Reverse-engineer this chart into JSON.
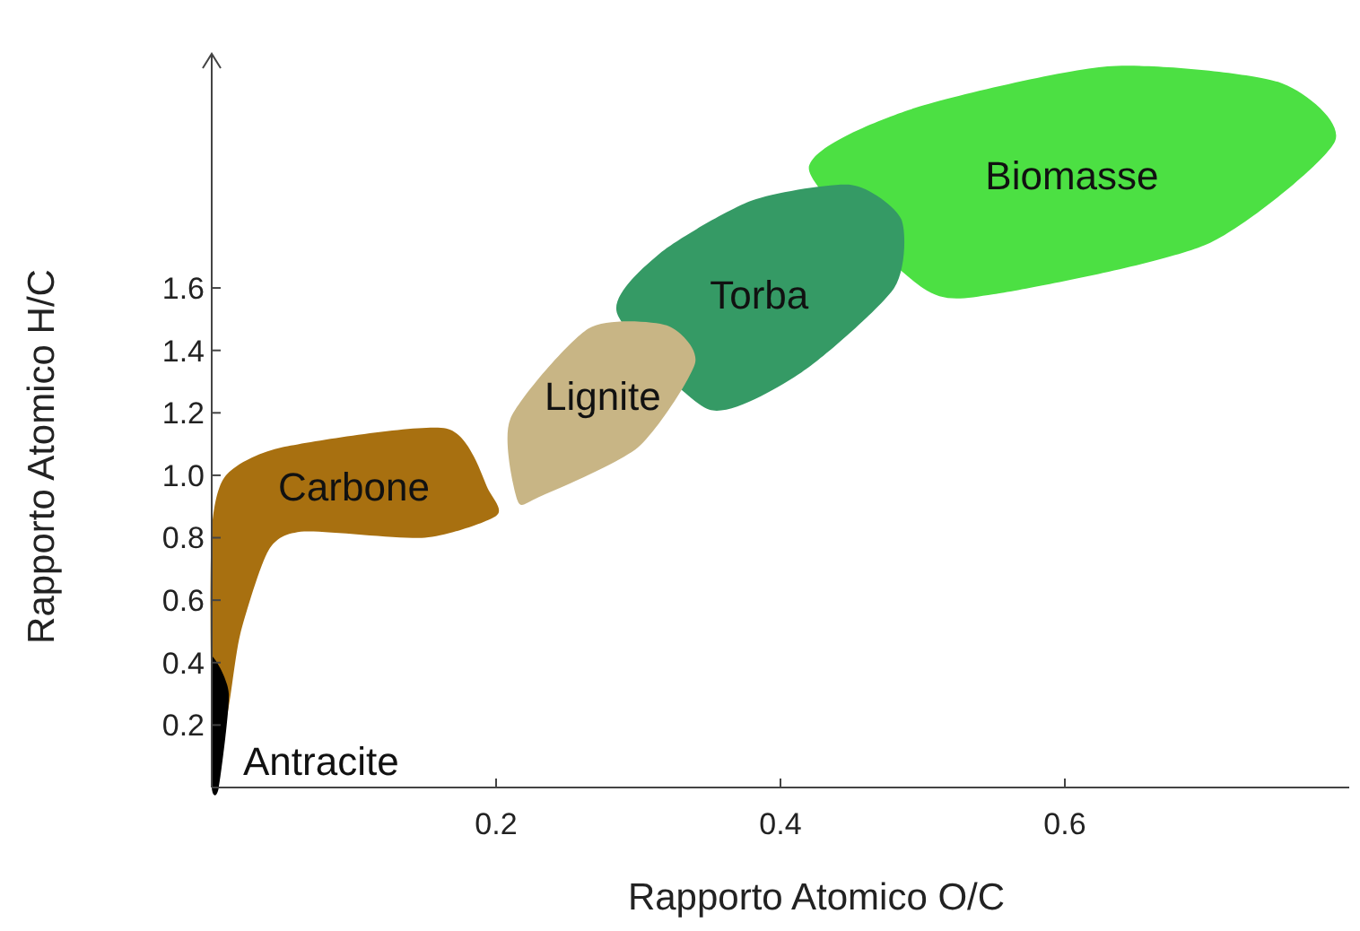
{
  "chart_data": {
    "type": "area",
    "xlabel": "Rapporto Atomico O/C",
    "ylabel": "Rapporto Atomico H/C",
    "xlim": [
      0,
      0.8
    ],
    "ylim": [
      0,
      2.35
    ],
    "xticks": [
      0.2,
      0.4,
      0.6
    ],
    "yticks": [
      0.2,
      0.4,
      0.6,
      0.8,
      {
        "value": 1,
        "label": "1.0"
      },
      1.2,
      1.4,
      1.6
    ],
    "grid": false,
    "series": [
      {
        "name": "Biomasse",
        "color": "#4ce043",
        "x": [
          0.5,
          0.55,
          0.7,
          0.79,
          0.75,
          0.63,
          0.49,
          0.42
        ],
        "values": [
          1.6,
          1.58,
          1.74,
          2.07,
          2.26,
          2.31,
          2.17,
          1.98
        ]
      },
      {
        "name": "Torba",
        "color": "#359a65",
        "x": [
          0.285,
          0.35,
          0.415,
          0.48,
          0.485,
          0.45,
          0.38,
          0.315
        ],
        "values": [
          1.52,
          1.21,
          1.33,
          1.6,
          1.82,
          1.93,
          1.88,
          1.71
        ]
      },
      {
        "name": "Lignite",
        "color": "#c8b585",
        "x": [
          0.21,
          0.215,
          0.23,
          0.3,
          0.34,
          0.32,
          0.265
        ],
        "values": [
          1.18,
          0.92,
          0.93,
          1.09,
          1.36,
          1.48,
          1.47
        ]
      },
      {
        "name": "Carbone",
        "color": "#a87010",
        "x": [
          0,
          0,
          0.01,
          0.05,
          0.165,
          0.195,
          0.2,
          0.15,
          0.065,
          0.04,
          0.02,
          0.01
        ],
        "values": [
          0.33,
          0.82,
          1.0,
          1.09,
          1.15,
          0.95,
          0.87,
          0.8,
          0.82,
          0.76,
          0.49,
          0.22
        ]
      },
      {
        "name": "Antracite",
        "color": "#000000",
        "x": [
          0,
          0,
          0,
          0.012,
          0.005
        ],
        "values": [
          0,
          0.27,
          0.42,
          0.3,
          0
        ]
      }
    ]
  }
}
